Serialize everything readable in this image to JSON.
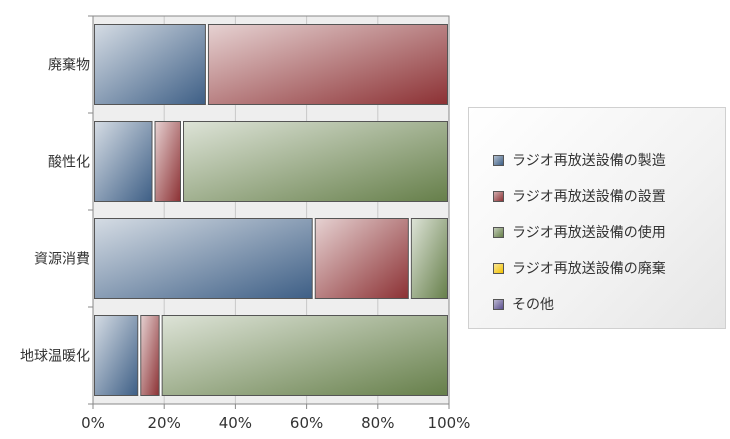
{
  "chart_data": {
    "type": "bar",
    "orientation": "horizontal",
    "stacked": "percent",
    "categories": [
      "廃棄物",
      "酸性化",
      "資源消費",
      "地球温暖化"
    ],
    "series": [
      {
        "name": "ラジオ再放送設備の製造",
        "values": [
          32,
          17,
          62,
          13
        ],
        "color": "#3e5f86"
      },
      {
        "name": "ラジオ再放送設備の設置",
        "values": [
          68,
          8,
          27,
          6
        ],
        "color": "#8c3134"
      },
      {
        "name": "ラジオ再放送設備の使用",
        "values": [
          0,
          75,
          11,
          81
        ],
        "color": "#667f4a"
      },
      {
        "name": "ラジオ再放送設備の廃棄",
        "values": [
          0,
          0,
          0,
          0
        ],
        "color": "#f2c200"
      },
      {
        "name": "その他",
        "values": [
          0,
          0,
          0,
          0
        ],
        "color": "#5a4f8e"
      }
    ],
    "x_ticks": [
      "0%",
      "20%",
      "40%",
      "60%",
      "80%",
      "100%"
    ],
    "xlim": [
      0,
      100
    ],
    "grid": true,
    "legend_position": "right"
  }
}
